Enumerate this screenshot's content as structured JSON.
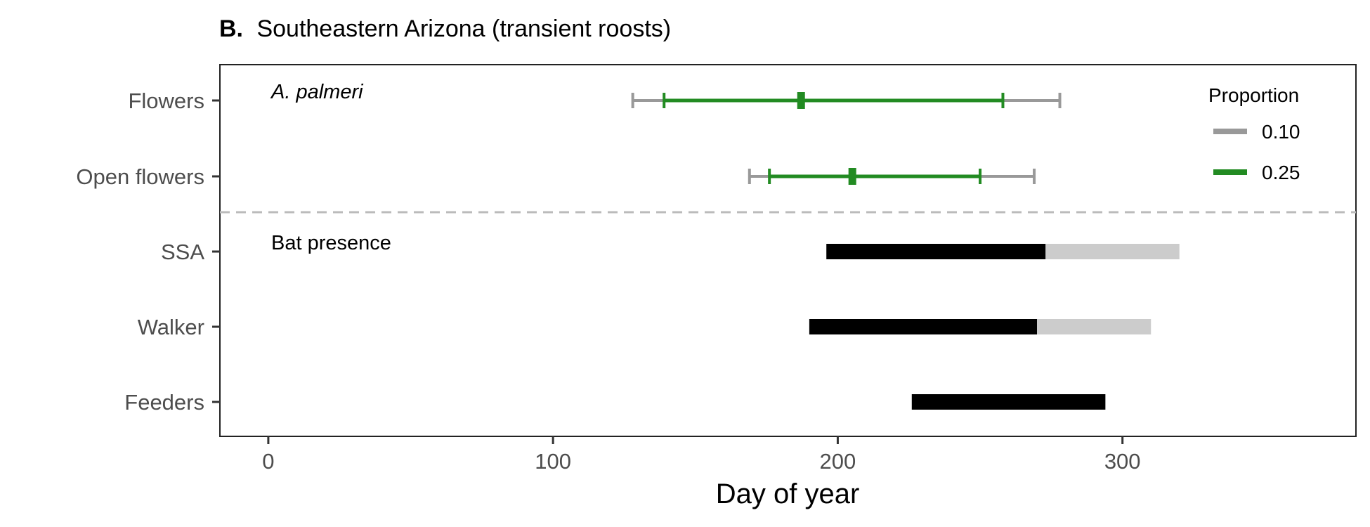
{
  "chart_data": {
    "type": "interval",
    "panel_label": "B.",
    "title": "Southeastern Arizona (transient roosts)",
    "xlabel": "Day of year",
    "xlim": [
      -17,
      382
    ],
    "x_ticks": [
      0,
      100,
      200,
      300
    ],
    "categories": [
      "Flowers",
      "Open flowers",
      "SSA",
      "Walker",
      "Feeders"
    ],
    "annotations": {
      "top_section": "A. palmeri",
      "bottom_section": "Bat presence"
    },
    "legend": {
      "title": "Proportion",
      "placement": "top-right",
      "entries": [
        {
          "label": "0.10",
          "color": "#999999"
        },
        {
          "label": "0.25",
          "color": "#228B22"
        }
      ]
    },
    "intervals": [
      {
        "category": "Flowers",
        "proportion_0_10": [
          128,
          278
        ],
        "proportion_0_25": [
          139,
          258
        ],
        "median": 187
      },
      {
        "category": "Open flowers",
        "proportion_0_10": [
          169,
          269
        ],
        "proportion_0_25": [
          176,
          250
        ],
        "median": 205
      }
    ],
    "presence_bars": [
      {
        "category": "SSA",
        "segments": [
          {
            "range": [
              196,
              273
            ],
            "color": "#000000"
          },
          {
            "range": [
              273,
              320
            ],
            "color": "#cccccc"
          }
        ]
      },
      {
        "category": "Walker",
        "segments": [
          {
            "range": [
              190,
              270
            ],
            "color": "#000000"
          },
          {
            "range": [
              270,
              310
            ],
            "color": "#cccccc"
          }
        ]
      },
      {
        "category": "Feeders",
        "segments": [
          {
            "range": [
              226,
              294
            ],
            "color": "#000000"
          }
        ]
      }
    ],
    "divider": {
      "style": "dashed",
      "color": "#bbbbbb"
    },
    "grid": false
  }
}
